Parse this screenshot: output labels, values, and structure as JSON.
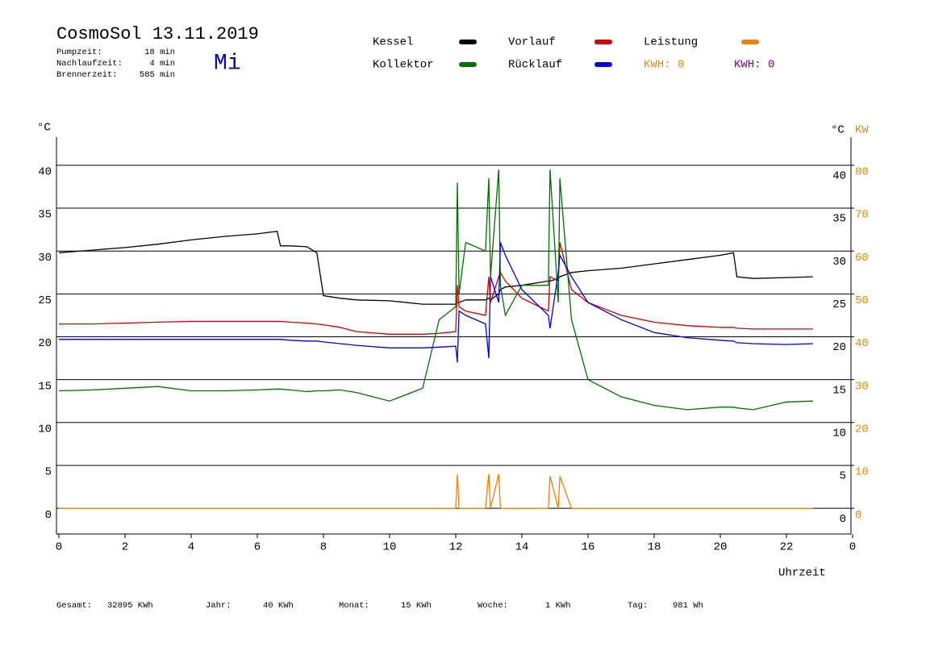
{
  "chart_data": {
    "type": "line",
    "title": "CosmoSol 13.11.2019",
    "weekday": "Mi",
    "info": [
      {
        "label": "Pumpzeit:",
        "value": "18 min"
      },
      {
        "label": "Nachlaufzeit:",
        "value": "4 min"
      },
      {
        "label": "Brennerzeit:",
        "value": "585 min"
      }
    ],
    "kwh_labels": [
      {
        "text": "KWH: 0",
        "color": "#e08a00"
      },
      {
        "text": "KWH: 0",
        "color": "#800080"
      }
    ],
    "y_unit": "°C",
    "y2_unit": "KW",
    "xlabel": "Uhrzeit",
    "footer": [
      {
        "label": "Gesamt:",
        "value": "32895 KWh"
      },
      {
        "label": "Jahr:",
        "value": "40 KWh"
      },
      {
        "label": "Monat:",
        "value": "15 KWh"
      },
      {
        "label": "Woche:",
        "value": "1 KWh"
      },
      {
        "label": "Tag:",
        "value": "981 Wh"
      }
    ],
    "xlim": [
      0,
      24
    ],
    "xticks": [
      0,
      2,
      4,
      6,
      8,
      10,
      12,
      14,
      16,
      18,
      20,
      22,
      {
        "value": 24,
        "label": "0"
      }
    ],
    "ylim": [
      -3,
      43
    ],
    "yticks": [
      0,
      5,
      10,
      15,
      20,
      25,
      30,
      35,
      40
    ],
    "y2lim": [
      -6,
      86
    ],
    "y2ticks": [
      0,
      10,
      20,
      30,
      40,
      50,
      60,
      70,
      80
    ],
    "grid": true,
    "x": [
      0,
      1,
      2,
      3,
      4,
      5,
      6,
      6.6,
      6.7,
      7,
      7.5,
      7.8,
      8,
      8.5,
      9,
      10,
      11,
      11.5,
      12,
      12.05,
      12.1,
      12.3,
      12.9,
      13,
      13.05,
      13.3,
      13.35,
      13.5,
      14,
      14.8,
      14.85,
      15.1,
      15.15,
      15.5,
      16,
      17,
      18,
      19,
      20,
      20.4,
      20.5,
      21,
      22,
      22.8
    ],
    "series": [
      {
        "name": "Kessel",
        "color": "#000000",
        "values": [
          29.8,
          30.1,
          30.4,
          30.8,
          31.3,
          31.7,
          32.0,
          32.3,
          30.6,
          30.6,
          30.5,
          29.8,
          24.8,
          24.5,
          24.3,
          24.2,
          23.8,
          23.8,
          23.8,
          24.0,
          24.0,
          24.3,
          24.3,
          24.5,
          24.3,
          25.0,
          25.5,
          25.8,
          26.0,
          26.5,
          26.5,
          26.8,
          27.0,
          27.5,
          27.7,
          28.0,
          28.5,
          29.0,
          29.5,
          29.8,
          27.0,
          26.8,
          26.9,
          27.0
        ]
      },
      {
        "name": "Vorlauf",
        "color": "#d00000",
        "values": [
          21.5,
          21.5,
          21.6,
          21.7,
          21.8,
          21.8,
          21.8,
          21.8,
          21.8,
          21.7,
          21.6,
          21.5,
          21.4,
          21.1,
          20.6,
          20.3,
          20.3,
          20.4,
          20.6,
          26.0,
          23.5,
          23.0,
          22.5,
          27.0,
          24.0,
          27.0,
          27.5,
          26.5,
          24.5,
          23.0,
          27.0,
          26.5,
          31.0,
          25.5,
          24.0,
          22.5,
          21.7,
          21.3,
          21.1,
          21.1,
          21.0,
          20.9,
          20.9,
          20.9
        ]
      },
      {
        "name": "Leistung",
        "color": "#f08000",
        "axis": "y2",
        "values": [
          0,
          0,
          0,
          0,
          0,
          0,
          0,
          0,
          0,
          0,
          0,
          0,
          0,
          0,
          0,
          0,
          0,
          0,
          0,
          8,
          0,
          0,
          0,
          8,
          0,
          8,
          0,
          0,
          0,
          0,
          7.5,
          0,
          7.5,
          0,
          0,
          0,
          0,
          0,
          0,
          0,
          0,
          0,
          0,
          0
        ]
      },
      {
        "name": "Kollektor",
        "color": "#007000",
        "values": [
          13.7,
          13.8,
          14.0,
          14.2,
          13.7,
          13.7,
          13.8,
          13.9,
          13.9,
          13.8,
          13.6,
          13.7,
          13.7,
          13.8,
          13.5,
          12.5,
          14.0,
          22.0,
          23.5,
          38.0,
          25.0,
          31.0,
          30.0,
          38.5,
          27.0,
          39.5,
          26.0,
          22.5,
          26.0,
          26.0,
          39.5,
          24.0,
          38.5,
          22.0,
          15.0,
          13.0,
          12.0,
          11.5,
          11.8,
          11.8,
          11.7,
          11.5,
          12.4,
          12.5
        ]
      },
      {
        "name": "Rücklauf",
        "color": "#0000e0",
        "values": [
          19.7,
          19.7,
          19.7,
          19.7,
          19.7,
          19.7,
          19.7,
          19.7,
          19.7,
          19.6,
          19.5,
          19.5,
          19.4,
          19.2,
          19.0,
          18.7,
          18.7,
          18.8,
          18.9,
          17.0,
          23.0,
          22.5,
          21.5,
          17.5,
          27.0,
          24.0,
          31.0,
          29.5,
          25.5,
          22.5,
          21.0,
          27.5,
          29.5,
          27.0,
          24.0,
          22.0,
          20.5,
          19.9,
          19.6,
          19.5,
          19.3,
          19.2,
          19.1,
          19.2
        ]
      }
    ]
  }
}
